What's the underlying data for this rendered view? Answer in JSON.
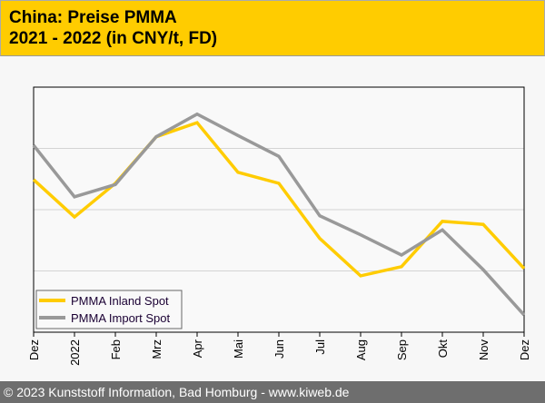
{
  "title": {
    "line1": "China: Preise PMMA",
    "line2": "2021 - 2022 (in CNY/t, FD)"
  },
  "footer": "© 2023 Kunststoff Information, Bad Homburg - www.kiweb.de",
  "chart_data": {
    "type": "line",
    "title": "China: Preise PMMA 2021 - 2022 (in CNY/t, FD)",
    "xlabel": "",
    "ylabel": "",
    "categories": [
      "Dez",
      "2022",
      "Feb",
      "Mrz",
      "Apr",
      "Mai",
      "Jun",
      "Jul",
      "Aug",
      "Sep",
      "Okt",
      "Nov",
      "Dez"
    ],
    "ylim": [
      0,
      4
    ],
    "y_note": "no y tick labels shown; relative scale, gridlines at 1,2,3",
    "grid": true,
    "legend_position": "bottom-left",
    "series": [
      {
        "name": "PMMA Inland Spot",
        "color": "#ffcc00",
        "values": [
          2.49,
          1.88,
          2.43,
          3.19,
          3.42,
          2.61,
          2.43,
          1.53,
          0.92,
          1.07,
          1.81,
          1.76,
          1.04
        ]
      },
      {
        "name": "PMMA Import Spot",
        "color": "#999999",
        "values": [
          3.05,
          2.21,
          2.41,
          3.19,
          3.56,
          3.21,
          2.87,
          1.9,
          1.59,
          1.26,
          1.67,
          1.02,
          0.28
        ]
      }
    ]
  }
}
